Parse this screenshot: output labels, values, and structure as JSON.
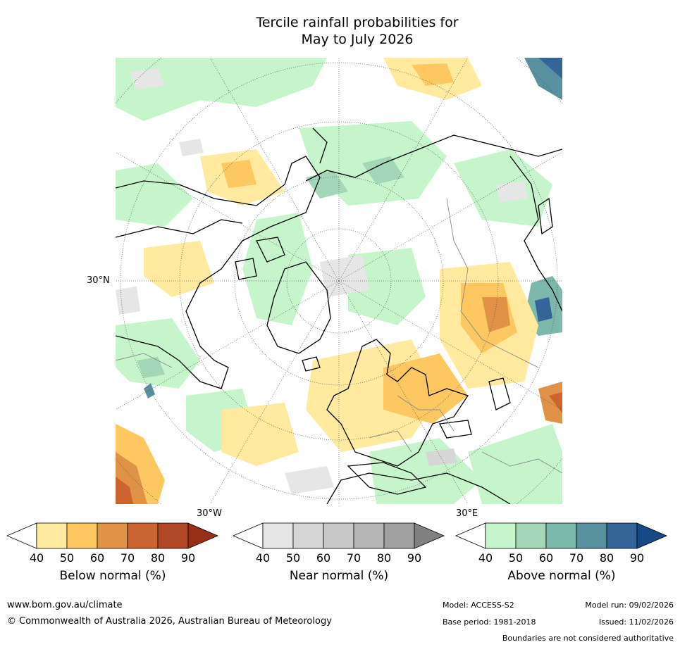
{
  "title_line1": "Tercile rainfall probabilities for",
  "title_line2": "May to July 2026",
  "map": {
    "projection": "north-polar-stereographic",
    "lat_label": "30°N",
    "lon_labels": [
      "30°W",
      "30°E"
    ]
  },
  "colorbars": [
    {
      "label": "Below normal (%)",
      "ticks": [
        "40",
        "50",
        "60",
        "70",
        "80",
        "90"
      ],
      "colors": [
        "#ffffff",
        "#ffeaa0",
        "#fdc862",
        "#e09246",
        "#cc6432",
        "#b04828",
        "#962e18"
      ]
    },
    {
      "label": "Near normal (%)",
      "ticks": [
        "40",
        "50",
        "60",
        "70",
        "80",
        "90"
      ],
      "colors": [
        "#ffffff",
        "#e6e6e6",
        "#d6d6d6",
        "#c8c8c8",
        "#b4b4b4",
        "#a0a0a0",
        "#808080"
      ]
    },
    {
      "label": "Above normal (%)",
      "ticks": [
        "40",
        "50",
        "60",
        "70",
        "80",
        "90"
      ],
      "colors": [
        "#ffffff",
        "#c6f5cc",
        "#a4d6b8",
        "#7cb8ac",
        "#5890a0",
        "#356498",
        "#164a86"
      ]
    }
  ],
  "footer": {
    "url": "www.bom.gov.au/climate",
    "copyright": "© Commonwealth of Australia 2026, Australian Bureau of Meteorology",
    "model": "Model: ACCESS-S2",
    "base_period": "Base period: 1981-2018",
    "model_run": "Model run: 09/02/2026",
    "issued": "Issued: 11/02/2026",
    "disclaimer": "Boundaries are not considered authoritative"
  }
}
